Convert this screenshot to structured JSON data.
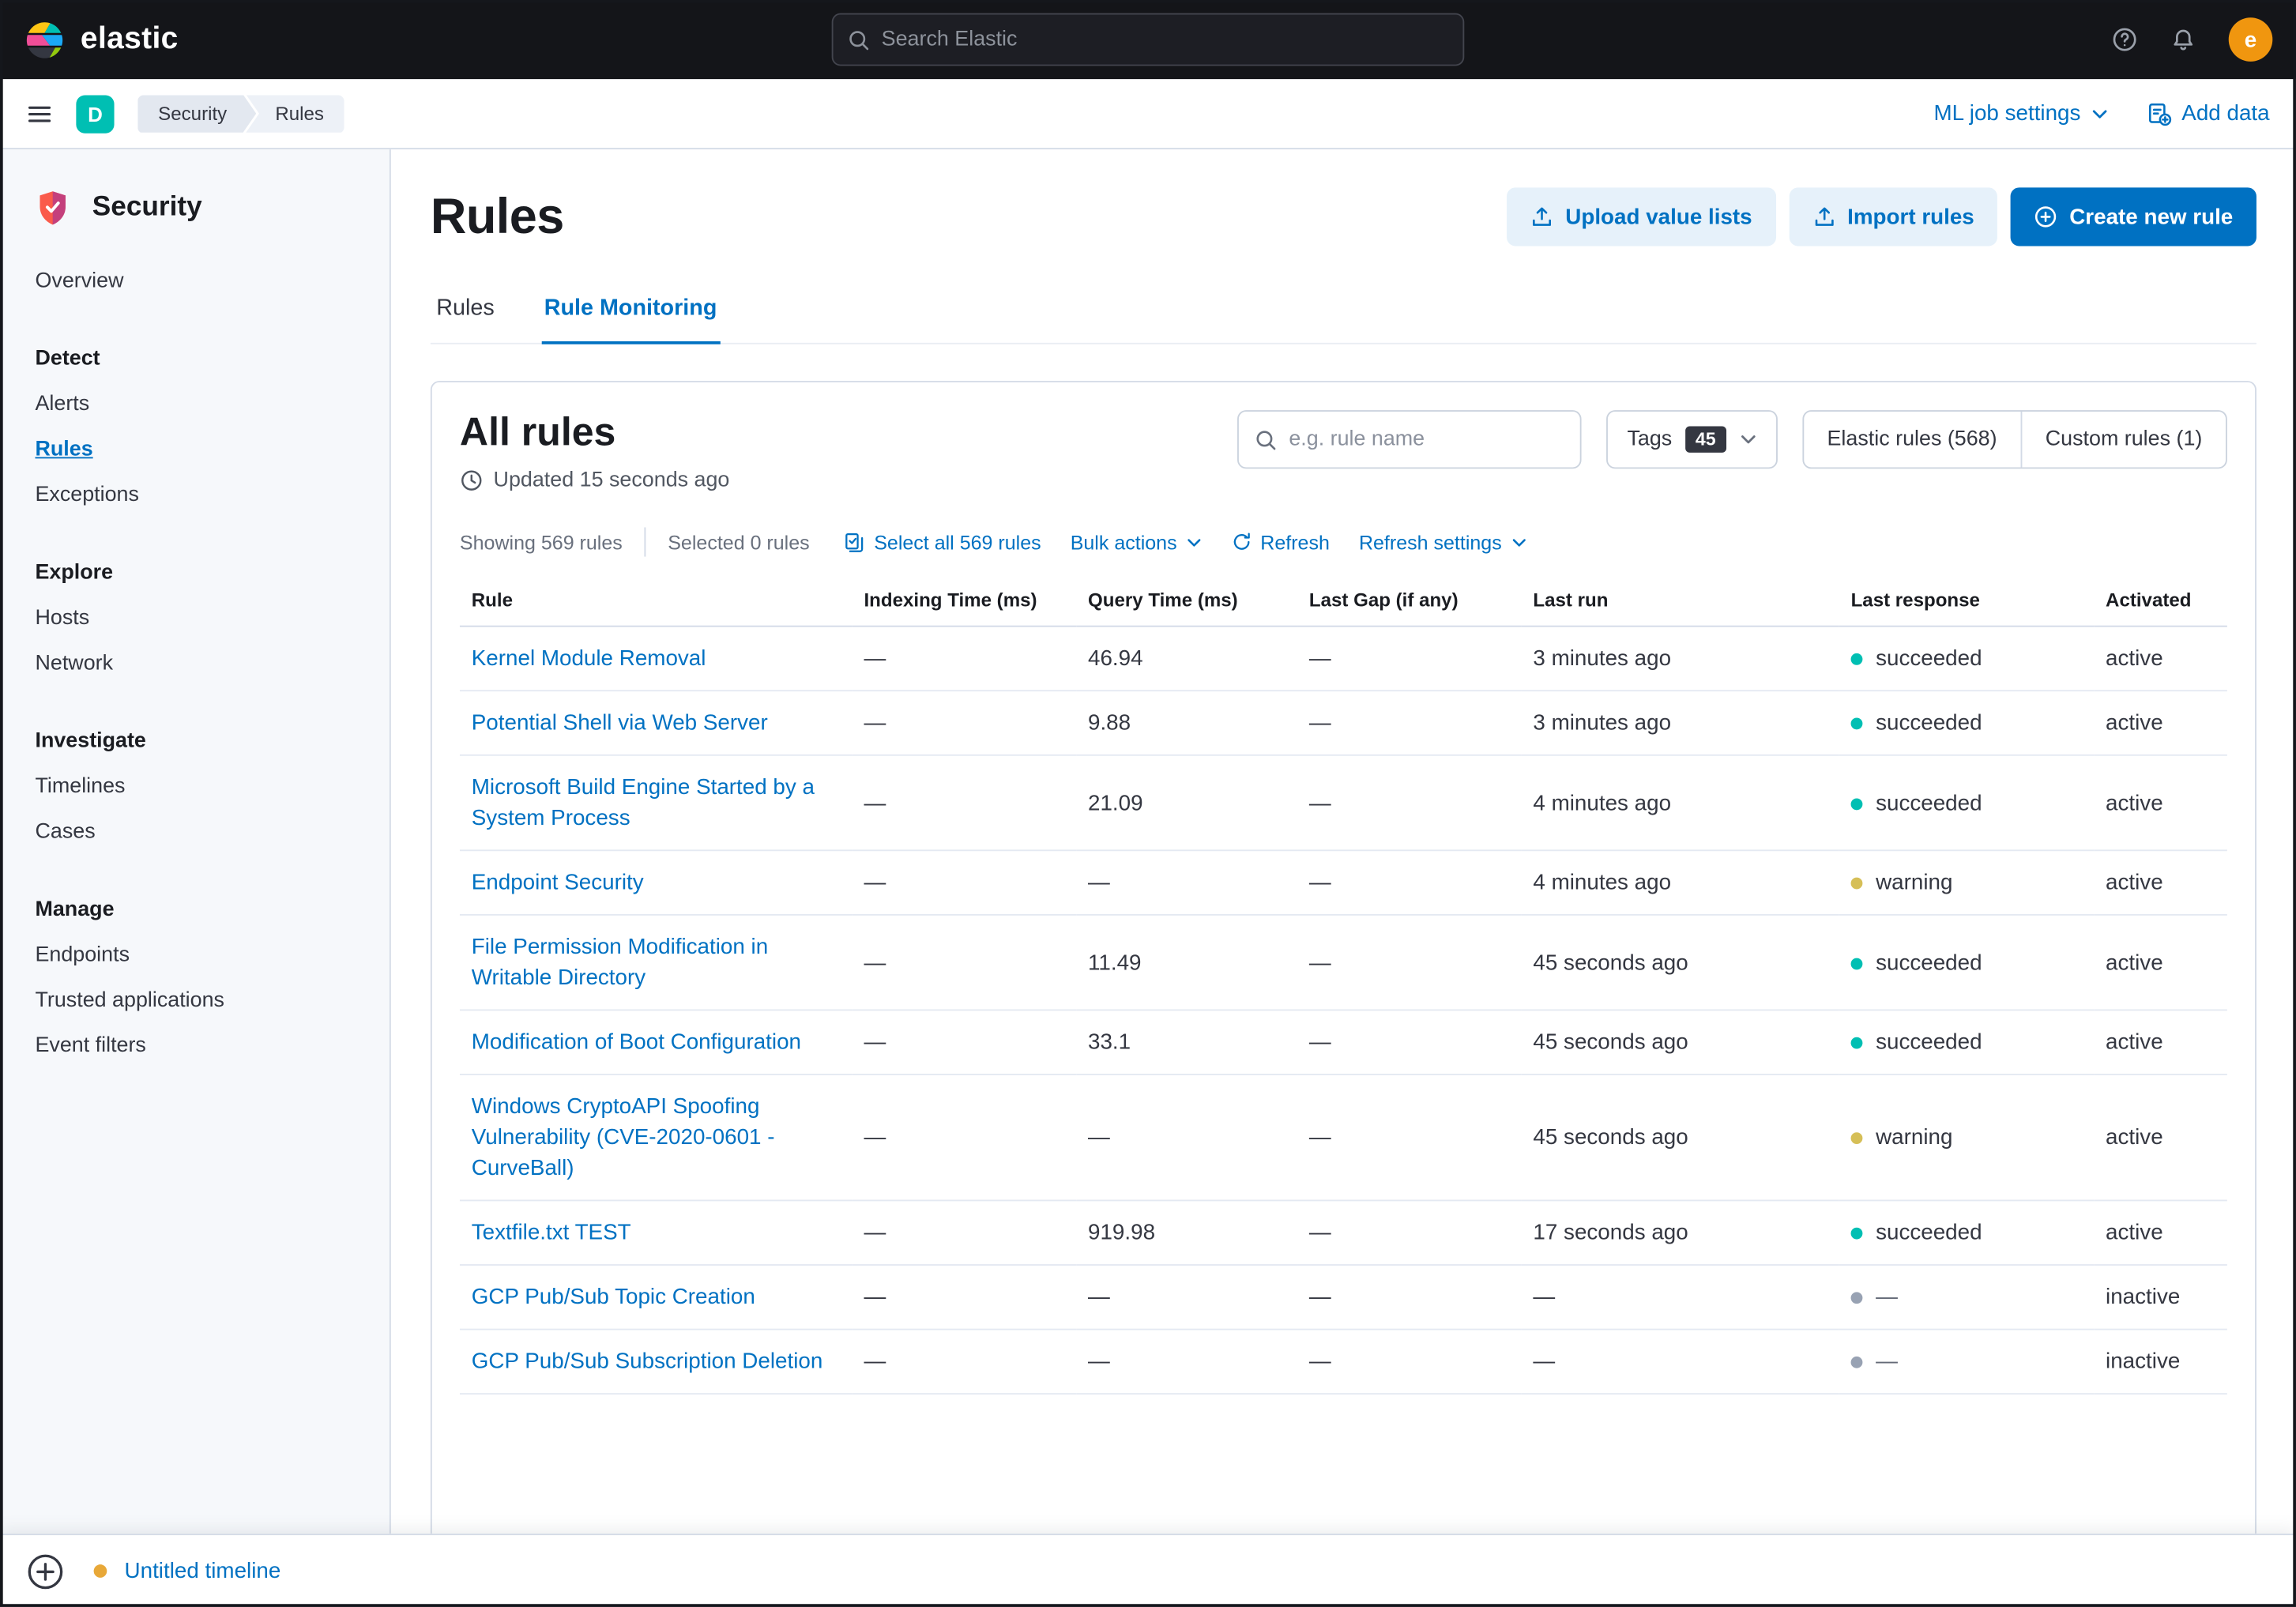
{
  "colors": {
    "primary": "#0071c2",
    "link": "#0071c2",
    "success_dot": "#00bfb3",
    "warning_dot": "#d6bf57",
    "none_dot": "#98a2b3",
    "timeline_dot": "#e8a838",
    "topbar_bg": "#141519",
    "space_badge_bg": "#00bfb3",
    "avatar_bg": "#f0960f"
  },
  "topbar": {
    "brand": "elastic",
    "search_placeholder": "Search Elastic",
    "avatar_initial": "e"
  },
  "header": {
    "space_initial": "D",
    "breadcrumbs": [
      "Security",
      "Rules"
    ],
    "ml_job_settings_label": "ML job settings",
    "add_data_label": "Add data"
  },
  "sidebar": {
    "app_title": "Security",
    "items": [
      {
        "label": "Overview",
        "type": "link",
        "active": false
      },
      {
        "label": "Detect",
        "type": "section"
      },
      {
        "label": "Alerts",
        "type": "link",
        "active": false
      },
      {
        "label": "Rules",
        "type": "link",
        "active": true
      },
      {
        "label": "Exceptions",
        "type": "link",
        "active": false
      },
      {
        "label": "Explore",
        "type": "section"
      },
      {
        "label": "Hosts",
        "type": "link",
        "active": false
      },
      {
        "label": "Network",
        "type": "link",
        "active": false
      },
      {
        "label": "Investigate",
        "type": "section"
      },
      {
        "label": "Timelines",
        "type": "link",
        "active": false
      },
      {
        "label": "Cases",
        "type": "link",
        "active": false
      },
      {
        "label": "Manage",
        "type": "section"
      },
      {
        "label": "Endpoints",
        "type": "link",
        "active": false
      },
      {
        "label": "Trusted applications",
        "type": "link",
        "active": false
      },
      {
        "label": "Event filters",
        "type": "link",
        "active": false
      }
    ]
  },
  "page": {
    "title": "Rules",
    "upload_button": "Upload value lists",
    "import_button": "Import rules",
    "create_button": "Create new rule",
    "tabs": [
      {
        "label": "Rules",
        "active": false
      },
      {
        "label": "Rule Monitoring",
        "active": true
      }
    ]
  },
  "panel": {
    "title": "All rules",
    "updated": "Updated 15 seconds ago",
    "search_placeholder": "e.g. rule name",
    "tags_label": "Tags",
    "tags_count": "45",
    "filter_elastic": "Elastic rules (568)",
    "filter_custom": "Custom rules (1)",
    "showing": "Showing 569 rules",
    "selected": "Selected 0 rules",
    "select_all": "Select all 569 rules",
    "bulk_actions": "Bulk actions",
    "refresh": "Refresh",
    "refresh_settings": "Refresh settings"
  },
  "table": {
    "columns": [
      "Rule",
      "Indexing Time (ms)",
      "Query Time (ms)",
      "Last Gap (if any)",
      "Last run",
      "Last response",
      "Activated"
    ],
    "rows": [
      {
        "rule": "Kernel Module Removal",
        "indexing_time": "—",
        "query_time": "46.94",
        "last_gap": "—",
        "last_run": "3 minutes ago",
        "last_response": "succeeded",
        "response_status": "success",
        "activated": "active"
      },
      {
        "rule": "Potential Shell via Web Server",
        "indexing_time": "—",
        "query_time": "9.88",
        "last_gap": "—",
        "last_run": "3 minutes ago",
        "last_response": "succeeded",
        "response_status": "success",
        "activated": "active"
      },
      {
        "rule": "Microsoft Build Engine Started by a System Process",
        "indexing_time": "—",
        "query_time": "21.09",
        "last_gap": "—",
        "last_run": "4 minutes ago",
        "last_response": "succeeded",
        "response_status": "success",
        "activated": "active"
      },
      {
        "rule": "Endpoint Security",
        "indexing_time": "—",
        "query_time": "—",
        "last_gap": "—",
        "last_run": "4 minutes ago",
        "last_response": "warning",
        "response_status": "warning",
        "activated": "active"
      },
      {
        "rule": "File Permission Modification in Writable Directory",
        "indexing_time": "—",
        "query_time": "11.49",
        "last_gap": "—",
        "last_run": "45 seconds ago",
        "last_response": "succeeded",
        "response_status": "success",
        "activated": "active"
      },
      {
        "rule": "Modification of Boot Configuration",
        "indexing_time": "—",
        "query_time": "33.1",
        "last_gap": "—",
        "last_run": "45 seconds ago",
        "last_response": "succeeded",
        "response_status": "success",
        "activated": "active"
      },
      {
        "rule": "Windows CryptoAPI Spoofing Vulnerability (CVE-2020-0601 - CurveBall)",
        "indexing_time": "—",
        "query_time": "—",
        "last_gap": "—",
        "last_run": "45 seconds ago",
        "last_response": "warning",
        "response_status": "warning",
        "activated": "active"
      },
      {
        "rule": "Textfile.txt TEST",
        "indexing_time": "—",
        "query_time": "919.98",
        "last_gap": "—",
        "last_run": "17 seconds ago",
        "last_response": "succeeded",
        "response_status": "success",
        "activated": "active"
      },
      {
        "rule": "GCP Pub/Sub Topic Creation",
        "indexing_time": "—",
        "query_time": "—",
        "last_gap": "—",
        "last_run": "—",
        "last_response": "—",
        "response_status": "none",
        "activated": "inactive"
      },
      {
        "rule": "GCP Pub/Sub Subscription Deletion",
        "indexing_time": "—",
        "query_time": "—",
        "last_gap": "—",
        "last_run": "—",
        "last_response": "—",
        "response_status": "none",
        "activated": "inactive"
      }
    ]
  },
  "timeline": {
    "label": "Untitled timeline"
  }
}
